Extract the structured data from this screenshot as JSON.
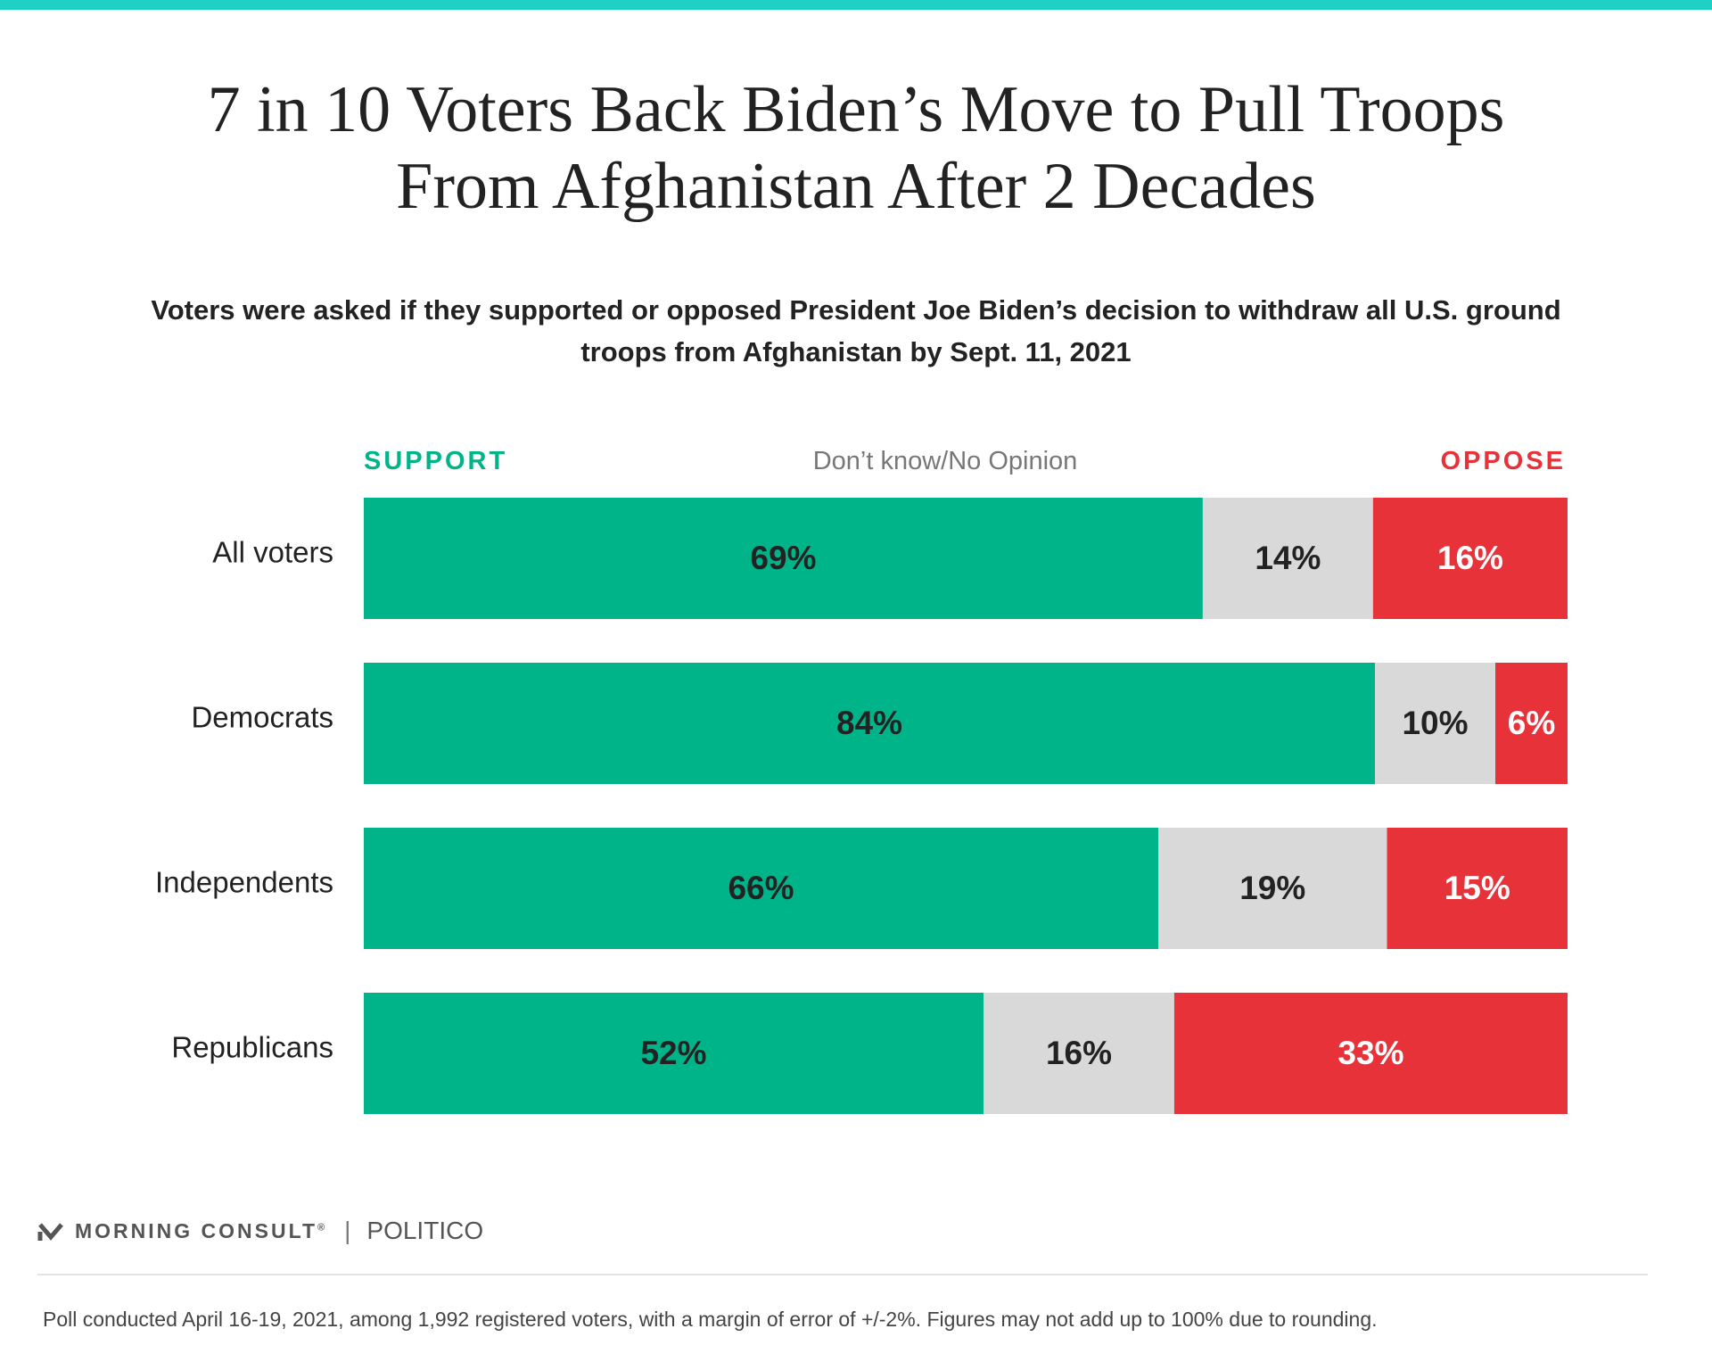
{
  "title": "7 in 10 Voters Back Biden’s Move to Pull Troops From Afghanistan After 2 Decades",
  "subtitle": "Voters were asked if they supported or opposed President Joe Biden’s decision to withdraw all U.S. ground troops from Afghanistan by Sept. 11, 2021",
  "legend": {
    "support": "SUPPORT",
    "dont_know": "Don’t know/No Opinion",
    "oppose": "OPPOSE"
  },
  "colors": {
    "support": "#00b48a",
    "dont_know": "#d9d9d9",
    "oppose": "#e8323a",
    "accent_bar": "#1fd1c5"
  },
  "chart_data": {
    "type": "bar",
    "orientation": "horizontal",
    "stacked": true,
    "categories": [
      "All voters",
      "Democrats",
      "Independents",
      "Republicans"
    ],
    "series": [
      {
        "name": "SUPPORT",
        "values": [
          69,
          84,
          66,
          52
        ],
        "labels": [
          "69%",
          "84%",
          "66%",
          "52%"
        ]
      },
      {
        "name": "Don’t know/No Opinion",
        "values": [
          14,
          10,
          19,
          16
        ],
        "labels": [
          "14%",
          "10%",
          "19%",
          "16%"
        ]
      },
      {
        "name": "OPPOSE",
        "values": [
          16,
          6,
          15,
          33
        ],
        "labels": [
          "16%",
          "6%",
          "15%",
          "33%"
        ]
      }
    ],
    "legend_position": "top",
    "grid": false
  },
  "footer": {
    "logo_primary": "MORNING CONSULT",
    "logo_mark": "®",
    "logo_secondary": "POLITICO",
    "note": "Poll conducted April 16-19, 2021, among 1,992 registered voters, with a margin of error of +/-2%. Figures may not add up to 100% due to rounding."
  }
}
